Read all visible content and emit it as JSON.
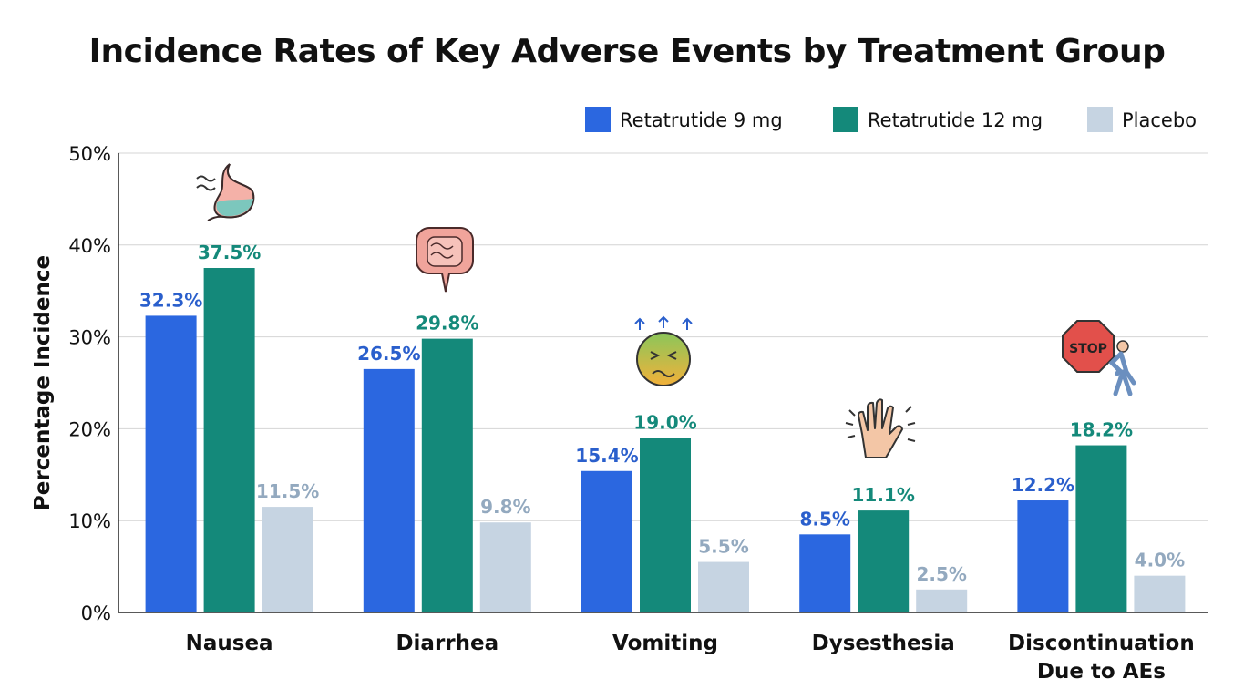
{
  "chart_data": {
    "type": "bar",
    "title": "Incidence Rates of Key Adverse Events by Treatment Group",
    "xlabel": "",
    "ylabel": "Percentage Incidence",
    "ylim": [
      0,
      50
    ],
    "yticks": [
      0,
      10,
      20,
      30,
      40,
      50
    ],
    "ytick_labels": [
      "0%",
      "10%",
      "20%",
      "30%",
      "40%",
      "50%"
    ],
    "grid": true,
    "legend_position": "top-right",
    "categories": [
      [
        "Nausea"
      ],
      [
        "Diarrhea"
      ],
      [
        "Vomiting"
      ],
      [
        "Dysesthesia"
      ],
      [
        "Discontinuation",
        "Due to AEs"
      ]
    ],
    "category_icons": [
      "stomach-icon",
      "intestine-icon",
      "nauseated-face-icon",
      "tingling-hand-icon",
      "stop-sign-walker-icon"
    ],
    "series": [
      {
        "name": "Retatrutide 9 mg",
        "color": "#2b67e0",
        "label_color": "#2a5fcc",
        "values": [
          32.3,
          26.5,
          15.4,
          8.5,
          12.2
        ],
        "labels": [
          "32.3%",
          "26.5%",
          "15.4%",
          "8.5%",
          "12.2%"
        ]
      },
      {
        "name": "Retatrutide 12 mg",
        "color": "#14897a",
        "label_color": "#14897a",
        "values": [
          37.5,
          29.8,
          19.0,
          11.1,
          18.2
        ],
        "labels": [
          "37.5%",
          "29.8%",
          "19.0%",
          "11.1%",
          "18.2%"
        ]
      },
      {
        "name": "Placebo",
        "color": "#c6d4e2",
        "label_color": "#93a9bf",
        "values": [
          11.5,
          9.8,
          5.5,
          2.5,
          4.0
        ],
        "labels": [
          "11.5%",
          "9.8%",
          "5.5%",
          "2.5%",
          "4.0%"
        ]
      }
    ]
  }
}
